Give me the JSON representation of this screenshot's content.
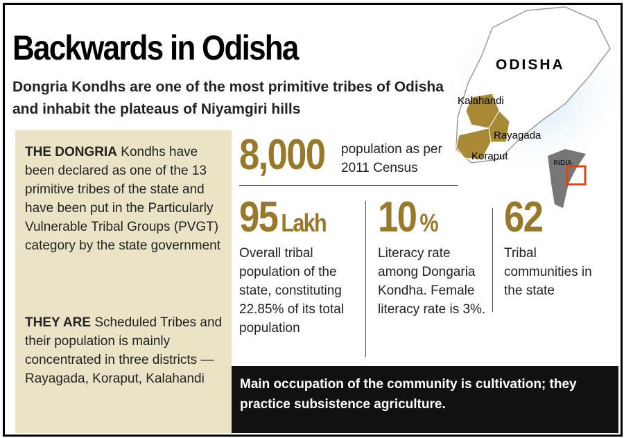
{
  "header": {
    "title": "Backwards in Odisha",
    "subtitle": "Dongria Kondhs are one of the most primitive tribes of Odisha and inhabit the plateaus of Niyamgiri hills"
  },
  "map": {
    "state": "ODISHA",
    "districts": [
      "Kalahandi",
      "Rayagada",
      "Koraput"
    ],
    "country": "INDIA"
  },
  "sidebar": [
    {
      "lead": "THE DONGRIA",
      "text": "Kondhs have been declared as one of the 13 primitive tribes of the state and have been put in the Particularly Vulnerable Tribal Groups (PVGT) category by the state government"
    },
    {
      "lead": "THEY ARE",
      "text": "Scheduled Tribes and their population is mainly concentrated in three districts —Rayagada, Koraput, Kalahandi"
    }
  ],
  "stats": [
    {
      "value": "8,000",
      "text": "population as per 2011 Census"
    },
    {
      "value": "95",
      "unit": "Lakh",
      "text": "Overall tribal population of the state, constituting 22.85% of its total population"
    },
    {
      "value": "10",
      "unit": "%",
      "text": "Literacy rate among Dongaria Kondha. Female literacy rate is 3%."
    },
    {
      "value": "62",
      "text": "Tribal communities in the state"
    }
  ],
  "footer": "Main occupation of the community is cultivation; they practice subsistence agriculture."
}
